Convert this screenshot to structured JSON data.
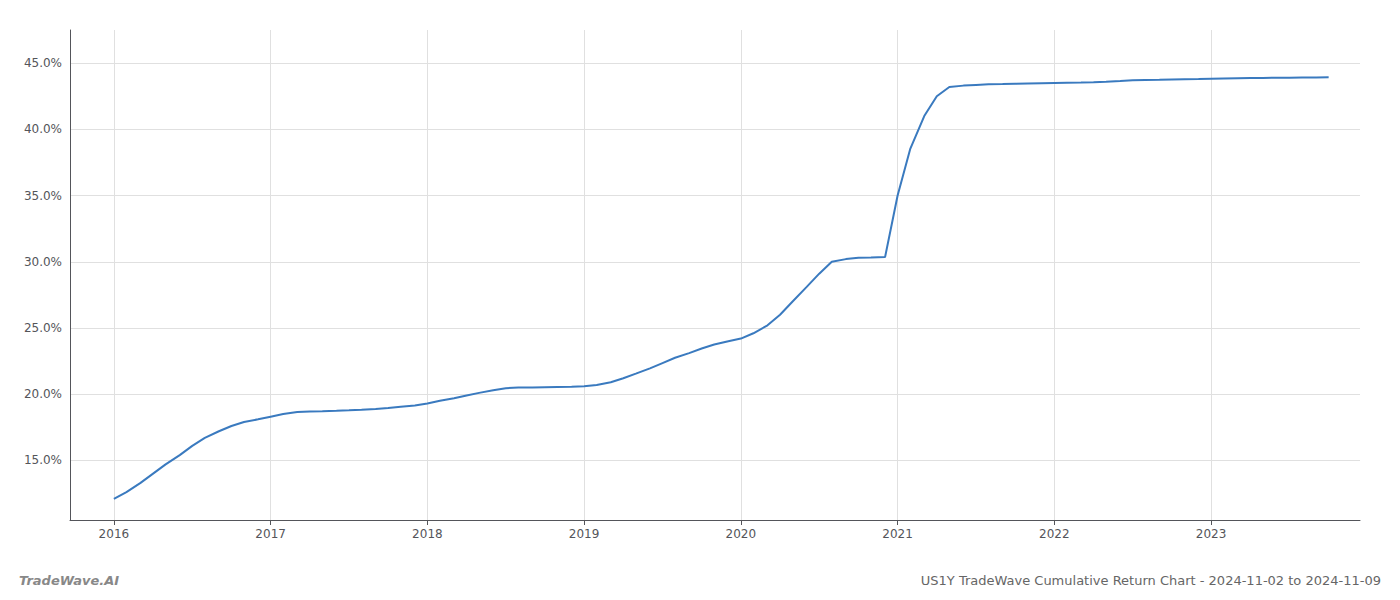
{
  "chart_data": {
    "type": "line",
    "title": "US1Y TradeWave Cumulative Return Chart - 2024-11-02 to 2024-11-09",
    "annotations": [
      "TradeWave.AI"
    ],
    "color": "#3a7abf",
    "grid": true,
    "x": [
      2016.0,
      2016.08,
      2016.17,
      2016.25,
      2016.33,
      2016.42,
      2016.5,
      2016.58,
      2016.67,
      2016.75,
      2016.83,
      2016.92,
      2017.0,
      2017.08,
      2017.17,
      2017.25,
      2017.33,
      2017.42,
      2017.5,
      2017.58,
      2017.67,
      2017.75,
      2017.83,
      2017.92,
      2018.0,
      2018.08,
      2018.17,
      2018.25,
      2018.33,
      2018.42,
      2018.5,
      2018.58,
      2018.67,
      2018.75,
      2018.83,
      2018.92,
      2019.0,
      2019.08,
      2019.17,
      2019.25,
      2019.33,
      2019.42,
      2019.5,
      2019.58,
      2019.67,
      2019.75,
      2019.83,
      2019.92,
      2020.0,
      2020.08,
      2020.17,
      2020.25,
      2020.33,
      2020.42,
      2020.5,
      2020.58,
      2020.67,
      2020.75,
      2020.83,
      2020.92,
      2021.0,
      2021.08,
      2021.17,
      2021.25,
      2021.33,
      2021.42,
      2021.5,
      2021.58,
      2021.67,
      2021.75,
      2021.83,
      2021.92,
      2022.0,
      2022.08,
      2022.17,
      2022.25,
      2022.33,
      2022.42,
      2022.5,
      2022.58,
      2022.67,
      2022.75,
      2022.83,
      2022.92,
      2023.0,
      2023.08,
      2023.17,
      2023.25,
      2023.33,
      2023.42,
      2023.5,
      2023.58,
      2023.67,
      2023.75
    ],
    "values": [
      12.1,
      12.6,
      13.3,
      14.0,
      14.7,
      15.4,
      16.1,
      16.7,
      17.2,
      17.6,
      17.9,
      18.1,
      18.3,
      18.5,
      18.65,
      18.7,
      18.72,
      18.75,
      18.78,
      18.82,
      18.88,
      18.95,
      19.05,
      19.15,
      19.3,
      19.5,
      19.7,
      19.9,
      20.1,
      20.3,
      20.45,
      20.5,
      20.5,
      20.52,
      20.54,
      20.56,
      20.6,
      20.7,
      20.9,
      21.2,
      21.55,
      21.95,
      22.35,
      22.75,
      23.1,
      23.45,
      23.75,
      24.0,
      24.2,
      24.6,
      25.2,
      26.0,
      27.0,
      28.1,
      29.1,
      30.0,
      30.2,
      30.3,
      30.32,
      30.35,
      35.0,
      38.5,
      41.0,
      42.5,
      43.2,
      43.3,
      43.35,
      43.4,
      43.42,
      43.44,
      43.46,
      43.48,
      43.5,
      43.52,
      43.54,
      43.56,
      43.6,
      43.65,
      43.7,
      43.72,
      43.74,
      43.76,
      43.78,
      43.8,
      43.82,
      43.84,
      43.86,
      43.87,
      43.88,
      43.89,
      43.9,
      43.91,
      43.92,
      43.93
    ],
    "xlim": [
      2015.72,
      2023.95
    ],
    "xticks": [
      2016,
      2017,
      2018,
      2019,
      2020,
      2021,
      2022,
      2023
    ],
    "ylim": [
      10.5,
      47.5
    ],
    "yticks": [
      {
        "value": 15.0,
        "label": "15.0%"
      },
      {
        "value": 20.0,
        "label": "20.0%"
      },
      {
        "value": 25.0,
        "label": "25.0%"
      },
      {
        "value": 30.0,
        "label": "30.0%"
      },
      {
        "value": 35.0,
        "label": "35.0%"
      },
      {
        "value": 40.0,
        "label": "40.0%"
      },
      {
        "value": 45.0,
        "label": "45.0%"
      }
    ]
  }
}
